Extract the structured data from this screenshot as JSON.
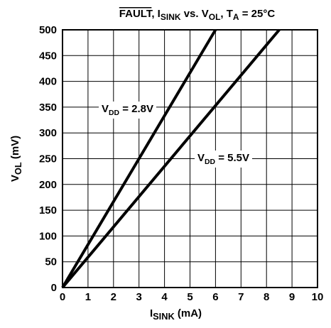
{
  "chart_data": {
    "type": "line",
    "title": [
      {
        "text": "FAULT",
        "style": "overline"
      },
      {
        "text": ", I"
      },
      {
        "text": "SINK",
        "style": "sub"
      },
      {
        "text": " vs. V"
      },
      {
        "text": "OL",
        "style": "sub"
      },
      {
        "text": ", T"
      },
      {
        "text": "A",
        "style": "sub"
      },
      {
        "text": "  = 25°C"
      }
    ],
    "x_label": [
      {
        "text": "I"
      },
      {
        "text": "SINK",
        "style": "sub"
      },
      {
        "text": " (mA)"
      }
    ],
    "y_label": [
      {
        "text": "V"
      },
      {
        "text": "OL",
        "style": "sub"
      },
      {
        "text": " (mV)"
      }
    ],
    "xlim": [
      0,
      10
    ],
    "xticks": [
      0,
      1,
      2,
      3,
      4,
      5,
      6,
      7,
      8,
      9,
      10
    ],
    "ylim": [
      0,
      500
    ],
    "yticks": [
      0,
      50,
      100,
      150,
      200,
      250,
      300,
      350,
      400,
      450,
      500
    ],
    "grid": true,
    "series": [
      {
        "name": [
          {
            "text": "V"
          },
          {
            "text": "DD",
            "style": "sub"
          },
          {
            "text": " = 2.8V"
          }
        ],
        "color": "#000000",
        "x": [
          0,
          6
        ],
        "values": [
          0,
          500
        ]
      },
      {
        "name": [
          {
            "text": "V"
          },
          {
            "text": "DD",
            "style": "sub"
          },
          {
            "text": " = 5.5V"
          }
        ],
        "color": "#000000",
        "x": [
          0,
          8.5
        ],
        "values": [
          0,
          500
        ]
      }
    ]
  }
}
